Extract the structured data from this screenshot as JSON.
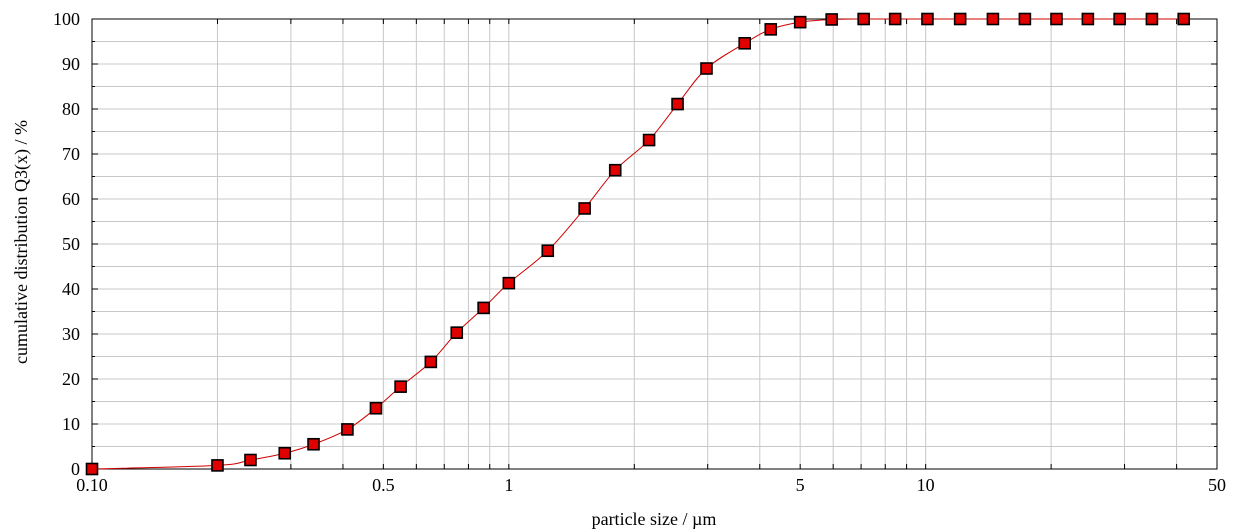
{
  "chart_data": {
    "type": "line",
    "xlabel": "particle size / µm",
    "ylabel": "cumulative distribution Q3(x) / %",
    "x_scale": "log",
    "xlim": [
      0.1,
      50
    ],
    "ylim": [
      0,
      100
    ],
    "x_tick_labels": [
      "0.10",
      "0.5",
      "1",
      "5",
      "10",
      "50"
    ],
    "x_tick_values": [
      0.1,
      0.5,
      1,
      5,
      10,
      50
    ],
    "y_tick_labels": [
      "0",
      "10",
      "20",
      "30",
      "40",
      "50",
      "60",
      "70",
      "80",
      "90",
      "100"
    ],
    "y_tick_values": [
      0,
      10,
      20,
      30,
      40,
      50,
      60,
      70,
      80,
      90,
      100
    ],
    "grid": true,
    "series_color": "#e00000",
    "line_color": "#d00000",
    "marker": "square",
    "x": [
      0.1,
      0.2,
      0.24,
      0.29,
      0.34,
      0.41,
      0.48,
      0.55,
      0.65,
      0.75,
      0.87,
      1.0,
      1.24,
      1.52,
      1.8,
      2.17,
      2.54,
      2.98,
      3.68,
      4.25,
      5.0,
      5.95,
      7.1,
      8.45,
      10.1,
      12.1,
      14.5,
      17.3,
      20.6,
      24.5,
      29.2,
      34.9,
      41.6
    ],
    "y": [
      0,
      0.8,
      2.0,
      3.5,
      5.5,
      8.8,
      13.5,
      18.3,
      23.8,
      30.3,
      35.8,
      41.3,
      48.5,
      57.9,
      66.4,
      73.1,
      81.1,
      89.0,
      94.6,
      97.7,
      99.3,
      99.9,
      100,
      100,
      100,
      100,
      100,
      100,
      100,
      100,
      100,
      100,
      100
    ]
  }
}
